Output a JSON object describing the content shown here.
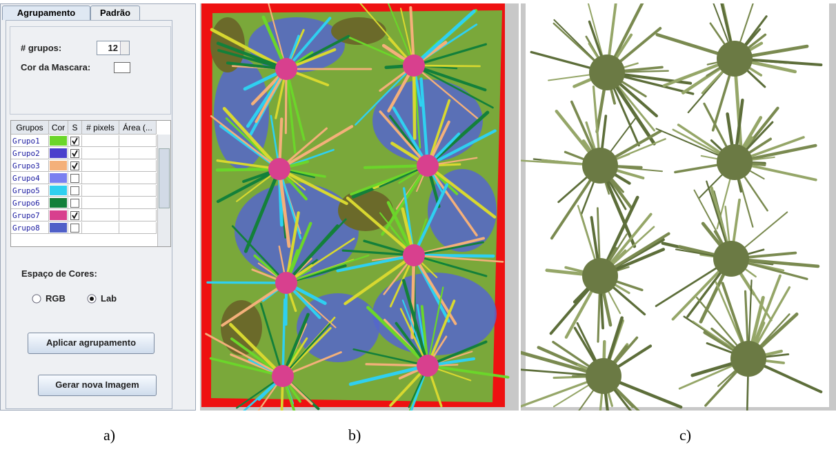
{
  "tabs": [
    "Agrupamento",
    "Padrão"
  ],
  "groups_label": "# grupos:",
  "groups_value": 12,
  "mask_color_label": "Cor da Mascara:",
  "table": {
    "columns": [
      "Grupos",
      "Cor",
      "S",
      "# pixels",
      "Área (..."
    ],
    "rows": [
      {
        "name": "Grupo1",
        "color": "#6bd62a",
        "selected": true
      },
      {
        "name": "Grupo2",
        "color": "#4a3fcc",
        "selected": true
      },
      {
        "name": "Grupo3",
        "color": "#f4b07a",
        "selected": true
      },
      {
        "name": "Grupo4",
        "color": "#7a80f0",
        "selected": false
      },
      {
        "name": "Grupo5",
        "color": "#2fd0f0",
        "selected": false
      },
      {
        "name": "Grupo6",
        "color": "#13803a",
        "selected": false
      },
      {
        "name": "Grupo7",
        "color": "#d8408e",
        "selected": true
      },
      {
        "name": "Grupo8",
        "color": "#5060c8",
        "selected": false
      }
    ]
  },
  "color_space_label": "Espaço de Cores:",
  "color_space_options": [
    "RGB",
    "Lab"
  ],
  "color_space_selected_index": 1,
  "buttons": [
    "Aplicar agrupamento",
    "Gerar nova Imagem"
  ],
  "captions": [
    "a)",
    "b)",
    "c)"
  ]
}
